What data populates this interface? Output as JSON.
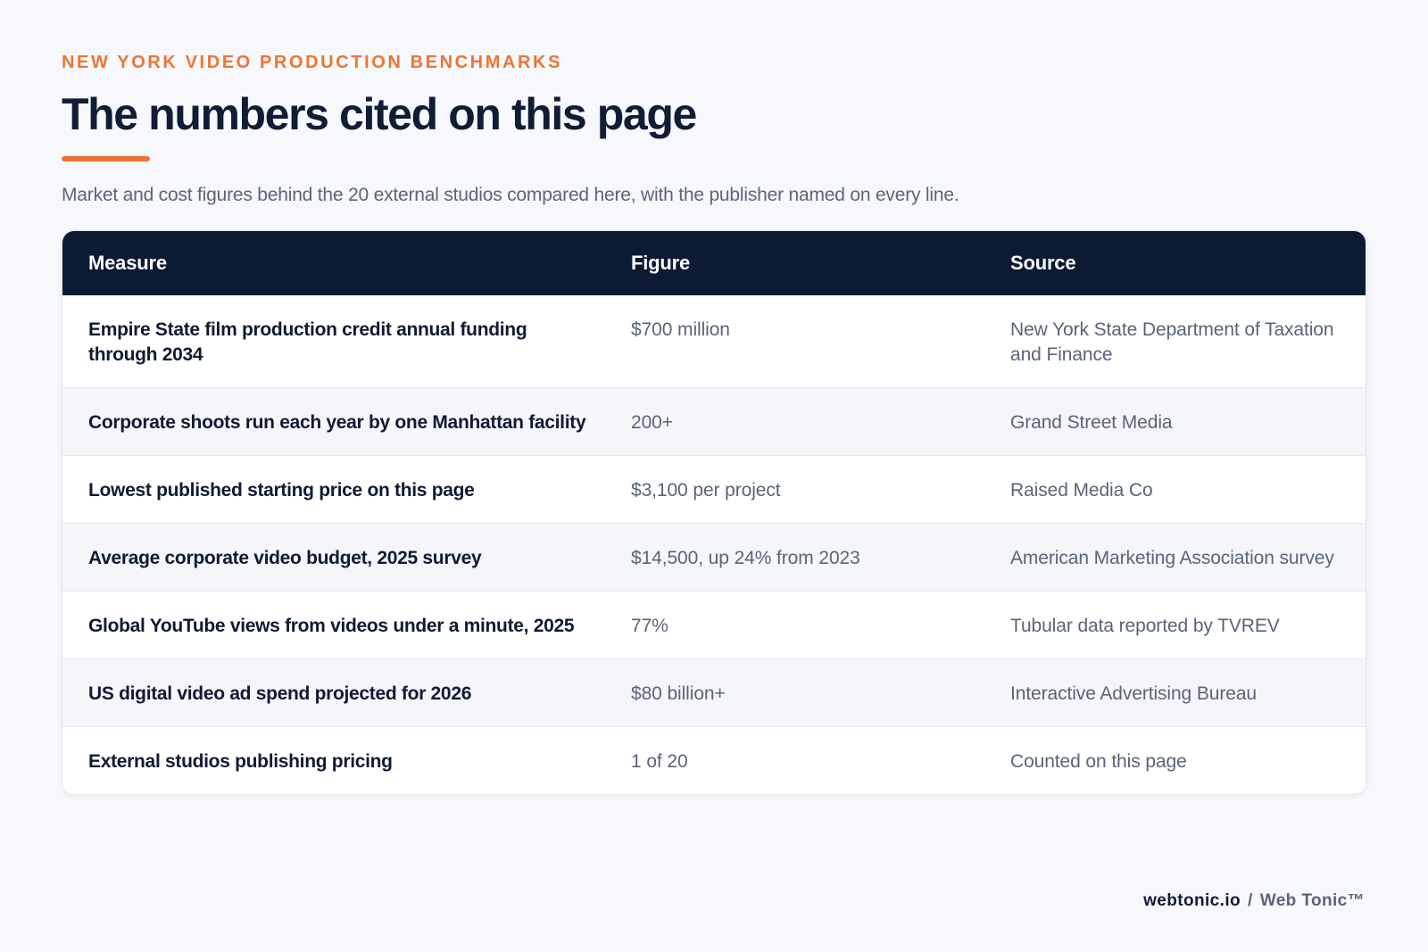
{
  "header": {
    "eyebrow": "NEW YORK VIDEO PRODUCTION BENCHMARKS",
    "title": "The numbers cited on this page",
    "subtitle": "Market and cost figures behind the 20 external studios compared here, with the publisher named on every line."
  },
  "table": {
    "columns": [
      "Measure",
      "Figure",
      "Source"
    ],
    "rows": [
      {
        "measure": "Empire State film production credit annual funding through 2034",
        "figure": "$700 million",
        "source": "New York State Department of Taxation and Finance"
      },
      {
        "measure": "Corporate shoots run each year by one Manhattan facility",
        "figure": "200+",
        "source": "Grand Street Media"
      },
      {
        "measure": "Lowest published starting price on this page",
        "figure": "$3,100 per project",
        "source": "Raised Media Co"
      },
      {
        "measure": "Average corporate video budget, 2025 survey",
        "figure": "$14,500, up 24% from 2023",
        "source": "American Marketing Association survey"
      },
      {
        "measure": "Global YouTube views from videos under a minute, 2025",
        "figure": "77%",
        "source": "Tubular data reported by TVREV"
      },
      {
        "measure": "US digital video ad spend projected for 2026",
        "figure": "$80 billion+",
        "source": "Interactive Advertising Bureau"
      },
      {
        "measure": "External studios publishing pricing",
        "figure": "1 of 20",
        "source": "Counted on this page"
      }
    ]
  },
  "footer": {
    "domain": "webtonic.io",
    "separator": "/",
    "brand": "Web Tonic™"
  },
  "colors": {
    "accent": "#ef7434",
    "header_bg": "#0d1a33",
    "page_bg": "#f6f8fb"
  }
}
